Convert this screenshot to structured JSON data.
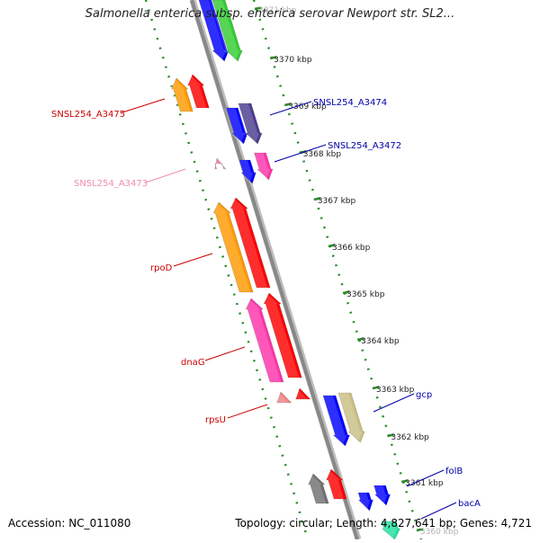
{
  "title": "Salmonella enterica subsp. enterica serovar Newport str. SL2...",
  "footer": {
    "accession": "Accession: NC_011080",
    "summary": "Topology: circular; Length: 4,827,641 bp; Genes: 4,721"
  },
  "ticks": [
    {
      "label": "3371 kbp",
      "faded": true
    },
    {
      "label": "3370 kbp"
    },
    {
      "label": "3369 kbp"
    },
    {
      "label": "3368 kbp"
    },
    {
      "label": "3367 kbp"
    },
    {
      "label": "3366 kbp"
    },
    {
      "label": "3365 kbp"
    },
    {
      "label": "3364 kbp"
    },
    {
      "label": "3363 kbp"
    },
    {
      "label": "3362 kbp"
    },
    {
      "label": "3361 kbp"
    },
    {
      "label": "3360 kbp",
      "faded": true
    }
  ],
  "gene_labels": [
    {
      "name": "SNSL254_A3475",
      "color": "#cc0000"
    },
    {
      "name": "SNSL254_A3474",
      "color": "#0000aa"
    },
    {
      "name": "SNSL254_A3472",
      "color": "#0000aa"
    },
    {
      "name": "SNSL254_A3473",
      "color": "#f08cb4"
    },
    {
      "name": "rpoD",
      "color": "#cc0000"
    },
    {
      "name": "dnaG",
      "color": "#cc0000"
    },
    {
      "name": "rpsU",
      "color": "#cc0000"
    },
    {
      "name": "gcp",
      "color": "#0000aa"
    },
    {
      "name": "folB",
      "color": "#0000aa"
    },
    {
      "name": "bacA",
      "color": "#0000aa"
    }
  ],
  "colors": {
    "backbone": "#888888",
    "tick_line": "#2a8a2a",
    "orange": "#ff9900",
    "red": "#ff0000",
    "blue": "#0000ff",
    "green": "#33cc33",
    "purple": "#4b3c8f",
    "magenta": "#ff33aa",
    "pink": "#f08cb4",
    "salmon": "#f08080",
    "khaki": "#c8bf82",
    "gray": "#707070",
    "teal": "#20e0a0"
  }
}
